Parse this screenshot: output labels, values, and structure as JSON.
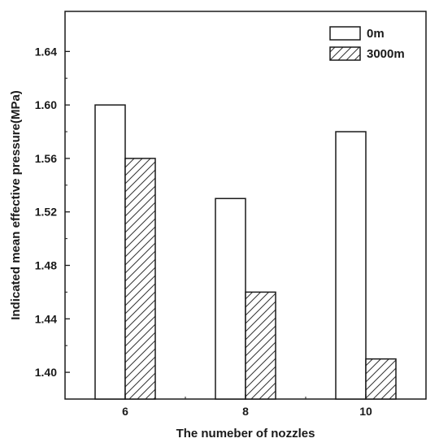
{
  "chart_data": {
    "type": "bar",
    "categories": [
      "6",
      "8",
      "10"
    ],
    "series": [
      {
        "name": "0m",
        "values": [
          1.6,
          1.53,
          1.58
        ],
        "fill": "#ffffff",
        "pattern": "none"
      },
      {
        "name": "3000m",
        "values": [
          1.56,
          1.46,
          1.41
        ],
        "fill": "#ffffff",
        "pattern": "diagonal-hatch"
      }
    ],
    "title": "",
    "xlabel": "The numeber of nozzles",
    "ylabel": "Indicated mean effective pressure(MPa)",
    "ylim": [
      1.38,
      1.67
    ],
    "yticks": [
      1.4,
      1.44,
      1.48,
      1.52,
      1.56,
      1.6,
      1.64
    ],
    "ytick_labels": [
      "1.40",
      "1.44",
      "1.48",
      "1.52",
      "1.56",
      "1.60",
      "1.64"
    ],
    "grid": false,
    "legend_position": "top-right",
    "colors": {
      "stroke": "#1a1a1a",
      "background": "#ffffff",
      "hatch": "#333333"
    }
  }
}
